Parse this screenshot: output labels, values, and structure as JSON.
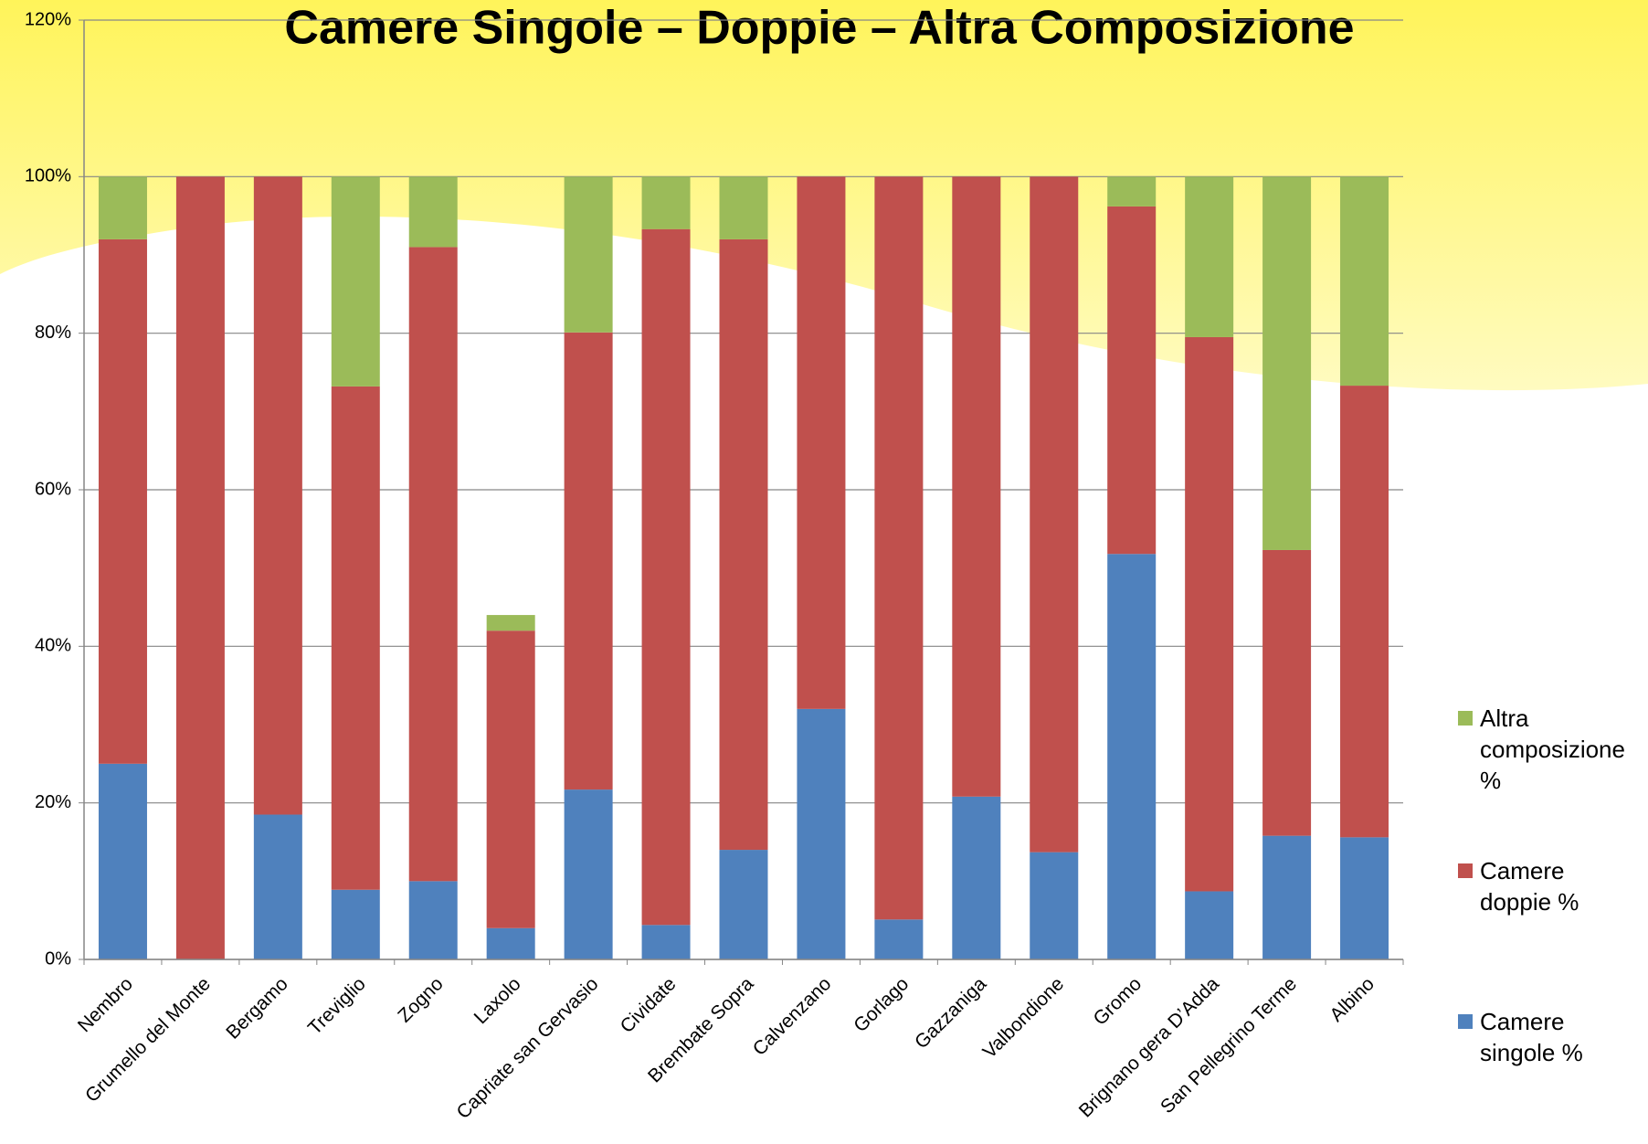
{
  "chart_data": {
    "type": "stacked_bar",
    "title": "Camere Singole – Doppie – Altra Composizione",
    "categories": [
      "Nembro",
      "Grumello del Monte",
      "Bergamo",
      "Treviglio",
      "Zogno",
      "Laxolo",
      "Capriate san Gervasio",
      "Cividate",
      "Brembate Sopra",
      "Calvenzano",
      "Gorlago",
      "Gazzaniga",
      "Valbondione",
      "Gromo",
      "Brignano gera D’Adda",
      "San Pellegrino Terme",
      "Albino"
    ],
    "series": [
      {
        "name": "Camere singole %",
        "color": "#4f81bd",
        "values": [
          25,
          0,
          18.5,
          8.9,
          10,
          4,
          21.7,
          4.4,
          14,
          32,
          5.1,
          20.8,
          13.7,
          51.8,
          8.7,
          15.8,
          15.6
        ]
      },
      {
        "name": "Camere doppie %",
        "color": "#c0504d",
        "values": [
          67,
          100,
          81.5,
          64.3,
          81,
          38,
          58.4,
          88.9,
          78,
          68,
          94.9,
          79.2,
          86.3,
          44.4,
          70.8,
          36.5,
          57.7
        ]
      },
      {
        "name": "Altra composizione %",
        "color": "#9bbb59",
        "values": [
          8,
          0,
          0,
          26.8,
          9,
          2,
          19.9,
          6.7,
          8,
          0,
          0,
          0,
          0,
          3.8,
          20.5,
          47.7,
          26.7
        ]
      }
    ],
    "ylim": [
      0,
      120
    ],
    "yticks": [
      {
        "value": 0,
        "label": "0%"
      },
      {
        "value": 20,
        "label": "20%"
      },
      {
        "value": 40,
        "label": "40%"
      },
      {
        "value": 60,
        "label": "60%"
      },
      {
        "value": 80,
        "label": "80%"
      },
      {
        "value": 100,
        "label": "100%"
      },
      {
        "value": 120,
        "label": "120%"
      }
    ],
    "grid": true,
    "legend": "right"
  }
}
